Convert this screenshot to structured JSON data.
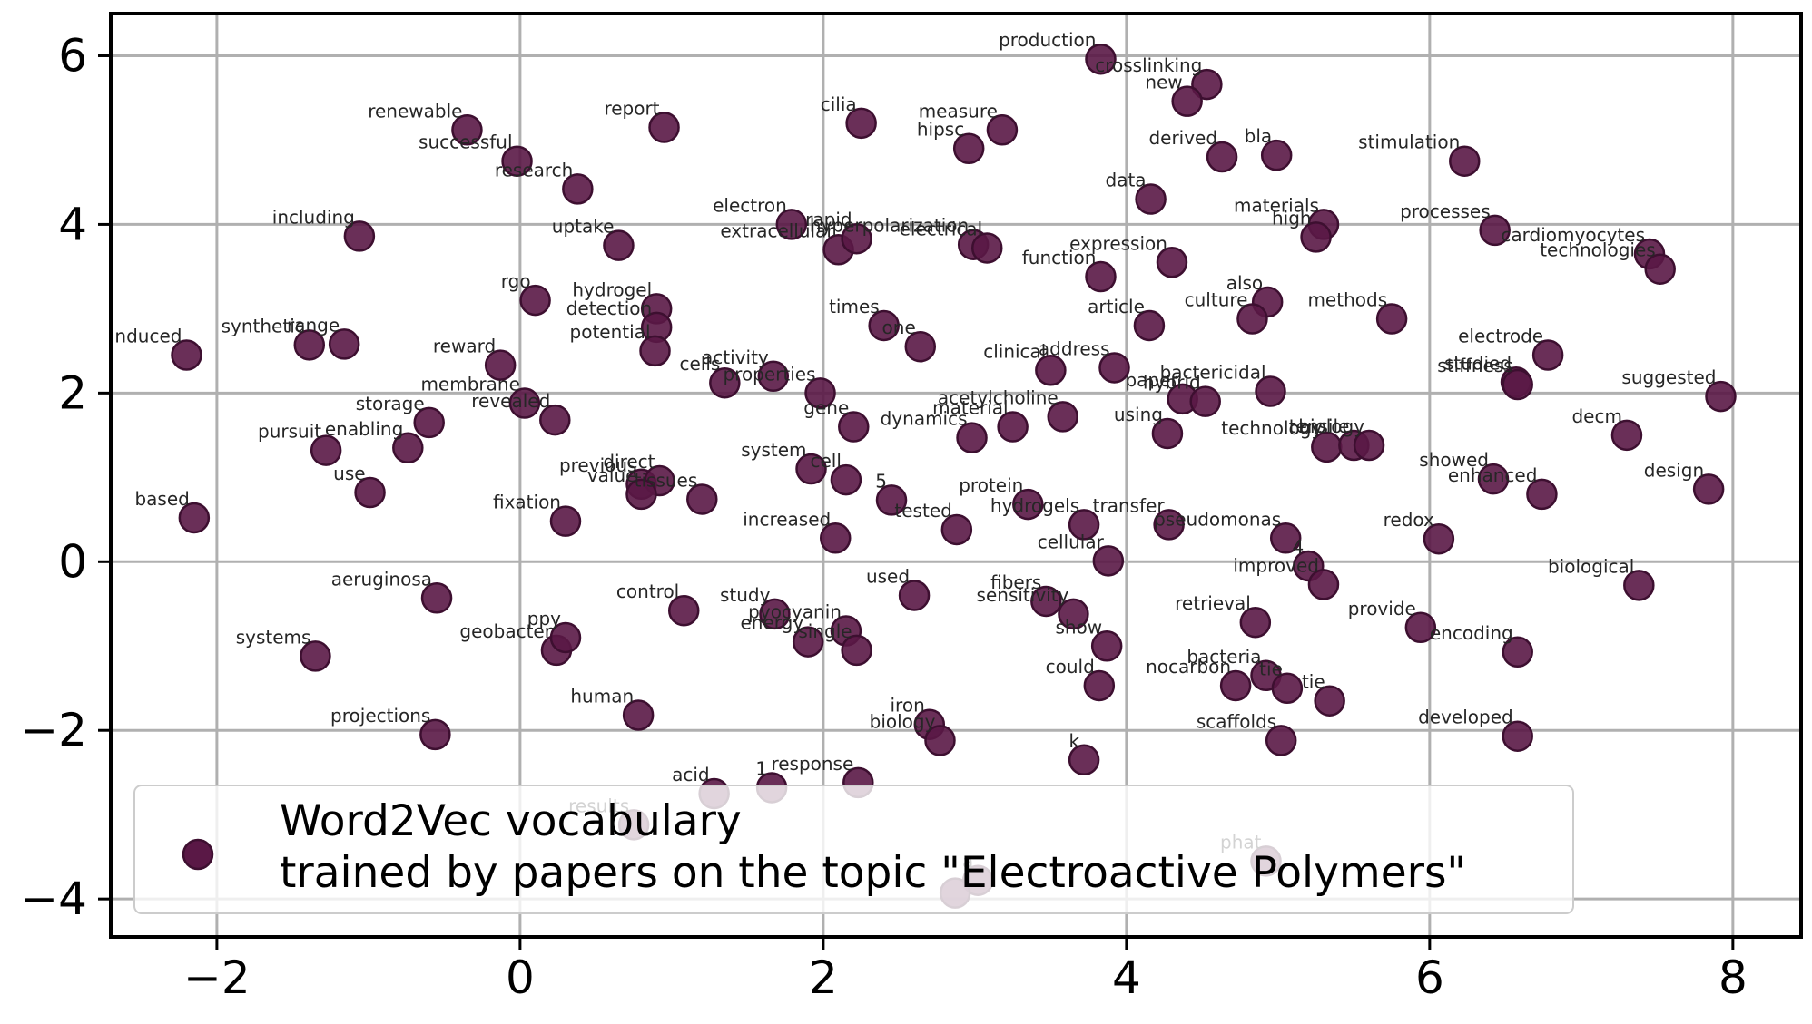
{
  "chart_data": {
    "type": "scatter",
    "title": "",
    "xlabel": "",
    "ylabel": "",
    "xlim": [
      -2.7,
      8.45
    ],
    "ylim": [
      -4.45,
      6.5
    ],
    "xticks": [
      -2,
      0,
      2,
      4,
      6,
      8
    ],
    "yticks": [
      -4,
      -2,
      0,
      2,
      4,
      6
    ],
    "grid": true,
    "legend_placement": "lower-left",
    "colors": {
      "marker_fill": "#5a1846",
      "marker_edge": "#3d0f30",
      "grid": "#b0b0b0",
      "axis": "#000000"
    },
    "legend": {
      "line1": "Word2Vec vocabulary",
      "line2": "trained by papers on the topic \"Electroactive Polymers\""
    },
    "series": [
      {
        "points": [
          {
            "label": "production",
            "x": 3.83,
            "y": 5.96
          },
          {
            "label": "crosslinking",
            "x": 4.53,
            "y": 5.66
          },
          {
            "label": "new",
            "x": 4.4,
            "y": 5.46
          },
          {
            "label": "renewable",
            "x": -0.35,
            "y": 5.12
          },
          {
            "label": "report",
            "x": 0.95,
            "y": 5.15
          },
          {
            "label": "cilia",
            "x": 2.25,
            "y": 5.2
          },
          {
            "label": "measure",
            "x": 3.18,
            "y": 5.12
          },
          {
            "label": "hipsc",
            "x": 2.96,
            "y": 4.9
          },
          {
            "label": "successful",
            "x": -0.02,
            "y": 4.75
          },
          {
            "label": "stimulation",
            "x": 6.23,
            "y": 4.75
          },
          {
            "label": "derived",
            "x": 4.63,
            "y": 4.8
          },
          {
            "label": "bla",
            "x": 4.99,
            "y": 4.82
          },
          {
            "label": "research",
            "x": 0.38,
            "y": 4.42
          },
          {
            "label": "data",
            "x": 4.16,
            "y": 4.3
          },
          {
            "label": "materials",
            "x": 5.3,
            "y": 4.0
          },
          {
            "label": "high",
            "x": 5.25,
            "y": 3.85
          },
          {
            "label": "processes",
            "x": 6.43,
            "y": 3.93
          },
          {
            "label": "including",
            "x": -1.06,
            "y": 3.86
          },
          {
            "label": "electron",
            "x": 1.79,
            "y": 4.0
          },
          {
            "label": "extracellular",
            "x": 2.1,
            "y": 3.7
          },
          {
            "label": "rapid",
            "x": 2.22,
            "y": 3.83
          },
          {
            "label": "hyperpolarization",
            "x": 2.99,
            "y": 3.76
          },
          {
            "label": "electrical",
            "x": 3.08,
            "y": 3.72
          },
          {
            "label": "uptake",
            "x": 0.65,
            "y": 3.75
          },
          {
            "label": "cardiomyocytes",
            "x": 7.45,
            "y": 3.65
          },
          {
            "label": "technologies",
            "x": 7.52,
            "y": 3.47
          },
          {
            "label": "expression",
            "x": 4.3,
            "y": 3.55
          },
          {
            "label": "function",
            "x": 3.83,
            "y": 3.38
          },
          {
            "label": "rgo",
            "x": 0.1,
            "y": 3.1
          },
          {
            "label": "hydrogel",
            "x": 0.9,
            "y": 3.0
          },
          {
            "label": "also",
            "x": 4.93,
            "y": 3.08
          },
          {
            "label": "detection",
            "x": 0.9,
            "y": 2.78
          },
          {
            "label": "culture",
            "x": 4.83,
            "y": 2.88
          },
          {
            "label": "methods",
            "x": 5.75,
            "y": 2.88
          },
          {
            "label": "times",
            "x": 2.4,
            "y": 2.8
          },
          {
            "label": "article",
            "x": 4.15,
            "y": 2.8
          },
          {
            "label": "induced",
            "x": -2.2,
            "y": 2.45
          },
          {
            "label": "synthetic",
            "x": -1.39,
            "y": 2.57
          },
          {
            "label": "range",
            "x": -1.16,
            "y": 2.58
          },
          {
            "label": "potential",
            "x": 0.89,
            "y": 2.5
          },
          {
            "label": "one",
            "x": 2.64,
            "y": 2.55
          },
          {
            "label": "electrode",
            "x": 6.78,
            "y": 2.45
          },
          {
            "label": "reward",
            "x": -0.13,
            "y": 2.33
          },
          {
            "label": "clinical",
            "x": 3.5,
            "y": 2.27
          },
          {
            "label": "address",
            "x": 3.92,
            "y": 2.3
          },
          {
            "label": "activity",
            "x": 1.67,
            "y": 2.2
          },
          {
            "label": "cells",
            "x": 1.35,
            "y": 2.12
          },
          {
            "label": "properties",
            "x": 1.98,
            "y": 2.0
          },
          {
            "label": "studied",
            "x": 6.57,
            "y": 2.13
          },
          {
            "label": "stiffness",
            "x": 6.58,
            "y": 2.1
          },
          {
            "label": "suggested",
            "x": 7.92,
            "y": 1.96
          },
          {
            "label": "membrane",
            "x": 0.03,
            "y": 1.88
          },
          {
            "label": "bactericidal",
            "x": 4.95,
            "y": 2.02
          },
          {
            "label": "paper",
            "x": 4.37,
            "y": 1.93
          },
          {
            "label": "hybrid",
            "x": 4.52,
            "y": 1.9
          },
          {
            "label": "revealed",
            "x": 0.23,
            "y": 1.68
          },
          {
            "label": "storage",
            "x": -0.6,
            "y": 1.65
          },
          {
            "label": "gene",
            "x": 2.2,
            "y": 1.6
          },
          {
            "label": "acetylcholine",
            "x": 3.58,
            "y": 1.72
          },
          {
            "label": "material",
            "x": 3.25,
            "y": 1.6
          },
          {
            "label": "dynamics",
            "x": 2.98,
            "y": 1.47
          },
          {
            "label": "using",
            "x": 4.27,
            "y": 1.52
          },
          {
            "label": "decm",
            "x": 7.3,
            "y": 1.5
          },
          {
            "label": "pursuit",
            "x": -1.28,
            "y": 1.32
          },
          {
            "label": "enabling",
            "x": -0.74,
            "y": 1.35
          },
          {
            "label": "technology",
            "x": 5.32,
            "y": 1.36
          },
          {
            "label": "tensile",
            "x": 5.5,
            "y": 1.38
          },
          {
            "label": "biology",
            "x": 5.6,
            "y": 1.38
          },
          {
            "label": "system",
            "x": 1.92,
            "y": 1.1
          },
          {
            "label": "showed",
            "x": 6.42,
            "y": 0.98
          },
          {
            "label": "enhanced",
            "x": 6.74,
            "y": 0.8
          },
          {
            "label": "design",
            "x": 7.84,
            "y": 0.86
          },
          {
            "label": "previous",
            "x": 0.8,
            "y": 0.92
          },
          {
            "label": "direct",
            "x": 0.92,
            "y": 0.96
          },
          {
            "label": "value",
            "x": 0.8,
            "y": 0.8
          },
          {
            "label": "tissues",
            "x": 1.2,
            "y": 0.74
          },
          {
            "label": "cell",
            "x": 2.15,
            "y": 0.97
          },
          {
            "label": "use",
            "x": -0.99,
            "y": 0.82
          },
          {
            "label": "5",
            "x": 2.45,
            "y": 0.73
          },
          {
            "label": "protein",
            "x": 3.35,
            "y": 0.68
          },
          {
            "label": "hydrogels",
            "x": 3.72,
            "y": 0.44
          },
          {
            "label": "transfer",
            "x": 4.28,
            "y": 0.44
          },
          {
            "label": "fixation",
            "x": 0.3,
            "y": 0.48
          },
          {
            "label": "based",
            "x": -2.15,
            "y": 0.52
          },
          {
            "label": "tested",
            "x": 2.88,
            "y": 0.38
          },
          {
            "label": "increased",
            "x": 2.08,
            "y": 0.28
          },
          {
            "label": "pseudomonas",
            "x": 5.05,
            "y": 0.28
          },
          {
            "label": "redox",
            "x": 6.06,
            "y": 0.27
          },
          {
            "label": "cellular",
            "x": 3.88,
            "y": 0.01
          },
          {
            "label": "4",
            "x": 5.2,
            "y": -0.05
          },
          {
            "label": "improved",
            "x": 5.3,
            "y": -0.27
          },
          {
            "label": "biological",
            "x": 7.38,
            "y": -0.28
          },
          {
            "label": "aeruginosa",
            "x": -0.55,
            "y": -0.43
          },
          {
            "label": "used",
            "x": 2.6,
            "y": -0.4
          },
          {
            "label": "fibers",
            "x": 3.47,
            "y": -0.47
          },
          {
            "label": "control",
            "x": 1.08,
            "y": -0.58
          },
          {
            "label": "study",
            "x": 1.68,
            "y": -0.62
          },
          {
            "label": "sensitivity",
            "x": 3.65,
            "y": -0.62
          },
          {
            "label": "pyocyanin",
            "x": 2.15,
            "y": -0.82
          },
          {
            "label": "retrieval",
            "x": 4.85,
            "y": -0.72
          },
          {
            "label": "provide",
            "x": 5.94,
            "y": -0.78
          },
          {
            "label": "energy",
            "x": 1.9,
            "y": -0.95
          },
          {
            "label": "single",
            "x": 2.22,
            "y": -1.05
          },
          {
            "label": "show",
            "x": 3.87,
            "y": -1.0
          },
          {
            "label": "geobacter",
            "x": 0.24,
            "y": -1.05
          },
          {
            "label": "ppy",
            "x": 0.3,
            "y": -0.9
          },
          {
            "label": "systems",
            "x": -1.35,
            "y": -1.12
          },
          {
            "label": "encoding",
            "x": 6.58,
            "y": -1.07
          },
          {
            "label": "bacteria",
            "x": 4.92,
            "y": -1.35
          },
          {
            "label": "nocarbon",
            "x": 4.72,
            "y": -1.47
          },
          {
            "label": "tie",
            "x": 5.06,
            "y": -1.5
          },
          {
            "label": "could",
            "x": 3.82,
            "y": -1.47
          },
          {
            "label": "tie",
            "x": 5.34,
            "y": -1.65
          },
          {
            "label": "human",
            "x": 0.78,
            "y": -1.82
          },
          {
            "label": "iron",
            "x": 2.7,
            "y": -1.93
          },
          {
            "label": "biology",
            "x": 2.77,
            "y": -2.12
          },
          {
            "label": "projections",
            "x": -0.56,
            "y": -2.05
          },
          {
            "label": "scaffolds",
            "x": 5.02,
            "y": -2.12
          },
          {
            "label": "developed",
            "x": 6.58,
            "y": -2.07
          },
          {
            "label": "k",
            "x": 3.72,
            "y": -2.35
          },
          {
            "label": "acid",
            "x": 1.28,
            "y": -2.75
          },
          {
            "label": "1",
            "x": 1.66,
            "y": -2.68
          },
          {
            "label": "response",
            "x": 2.23,
            "y": -2.62
          },
          {
            "label": "results",
            "x": 0.75,
            "y": -3.12
          },
          {
            "label": "phat",
            "x": 4.92,
            "y": -3.55
          },
          {
            "label": "a",
            "x": 3.02,
            "y": -3.78
          },
          {
            "label": "",
            "x": 2.87,
            "y": -3.93
          }
        ]
      }
    ]
  }
}
